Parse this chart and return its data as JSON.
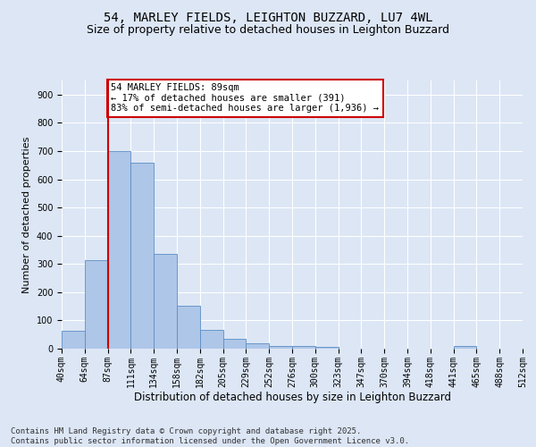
{
  "title": "54, MARLEY FIELDS, LEIGHTON BUZZARD, LU7 4WL",
  "subtitle": "Size of property relative to detached houses in Leighton Buzzard",
  "xlabel": "Distribution of detached houses by size in Leighton Buzzard",
  "ylabel": "Number of detached properties",
  "bar_values": [
    63,
    312,
    700,
    658,
    335,
    152,
    68,
    35,
    18,
    10,
    8,
    5,
    0,
    0,
    0,
    0,
    0,
    10,
    0,
    0
  ],
  "categories": [
    "40sqm",
    "64sqm",
    "87sqm",
    "111sqm",
    "134sqm",
    "158sqm",
    "182sqm",
    "205sqm",
    "229sqm",
    "252sqm",
    "276sqm",
    "300sqm",
    "323sqm",
    "347sqm",
    "370sqm",
    "394sqm",
    "418sqm",
    "441sqm",
    "465sqm",
    "488sqm",
    "512sqm"
  ],
  "bar_color": "#aec6e8",
  "bar_edge_color": "#5b8ec4",
  "vline_x": 2,
  "vline_color": "#cc0000",
  "annotation_text": "54 MARLEY FIELDS: 89sqm\n← 17% of detached houses are smaller (391)\n83% of semi-detached houses are larger (1,936) →",
  "annotation_box_color": "#ffffff",
  "annotation_box_edge": "#cc0000",
  "ylim": [
    0,
    950
  ],
  "yticks": [
    0,
    100,
    200,
    300,
    400,
    500,
    600,
    700,
    800,
    900
  ],
  "background_color": "#dce6f5",
  "plot_bg_color": "#dce6f5",
  "footer": "Contains HM Land Registry data © Crown copyright and database right 2025.\nContains public sector information licensed under the Open Government Licence v3.0.",
  "title_fontsize": 10,
  "subtitle_fontsize": 9,
  "xlabel_fontsize": 8.5,
  "ylabel_fontsize": 8,
  "tick_fontsize": 7,
  "annotation_fontsize": 7.5,
  "footer_fontsize": 6.5
}
